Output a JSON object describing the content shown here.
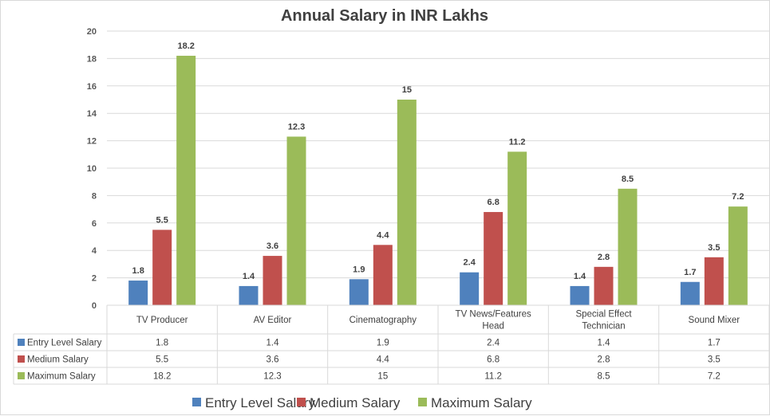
{
  "chart_data": {
    "type": "bar",
    "title": "Annual Salary in INR Lakhs",
    "xlabel": "",
    "ylabel": "",
    "ylim": [
      0,
      20
    ],
    "yticks": [
      0,
      2,
      4,
      6,
      8,
      10,
      12,
      14,
      16,
      18,
      20
    ],
    "grid": true,
    "legend_position": "bottom",
    "data_table": true,
    "categories": [
      [
        "TV Producer"
      ],
      [
        "AV Editor"
      ],
      [
        "Cinematography"
      ],
      [
        "TV News/Features",
        "Head"
      ],
      [
        "Special Effect",
        "Technician"
      ],
      [
        "Sound Mixer"
      ]
    ],
    "series": [
      {
        "name": "Entry Level Salary",
        "color": "#4f81bd",
        "values": [
          1.8,
          1.4,
          1.9,
          2.4,
          1.4,
          1.7
        ]
      },
      {
        "name": "Medium Salary",
        "color": "#c0504d",
        "values": [
          5.5,
          3.6,
          4.4,
          6.8,
          2.8,
          3.5
        ]
      },
      {
        "name": "Maximum Salary",
        "color": "#9bbb59",
        "values": [
          18.2,
          12.3,
          15,
          11.2,
          8.5,
          7.2
        ]
      }
    ]
  }
}
